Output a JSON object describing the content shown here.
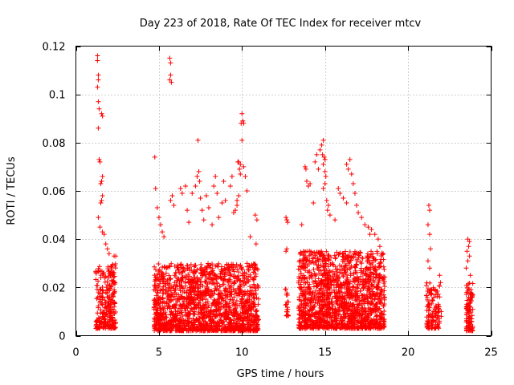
{
  "chart_data": {
    "type": "scatter",
    "title": "Day 223 of 2018, Rate Of TEC Index for receiver mtcv",
    "xlabel": "GPS time / hours",
    "ylabel": "ROTI / TECUs",
    "xlim": [
      0,
      25
    ],
    "ylim": [
      0,
      0.12
    ],
    "x_ticks": [
      0,
      5,
      10,
      15,
      20,
      25
    ],
    "x_tick_labels": [
      "0",
      "5",
      "10",
      "15",
      "20",
      "25"
    ],
    "y_ticks": [
      0,
      0.02,
      0.04,
      0.06,
      0.08,
      0.1,
      0.12
    ],
    "y_tick_labels": [
      "0",
      "0.02",
      "0.04",
      "0.06",
      "0.08",
      "0.1",
      "0.12"
    ],
    "grid": true,
    "marker": "+",
    "point_color": "#ff0000",
    "series": [
      {
        "clusters": [
          {
            "x_range": [
              1.2,
              2.4
            ],
            "count": 260,
            "y_range": [
              0.003,
              0.03
            ]
          },
          {
            "x_range": [
              4.7,
              8.2
            ],
            "count": 900,
            "y_range": [
              0.002,
              0.03
            ]
          },
          {
            "x_range": [
              8.2,
              11.0
            ],
            "count": 700,
            "y_range": [
              0.002,
              0.03
            ]
          },
          {
            "x_range": [
              12.6,
              12.8
            ],
            "count": 20,
            "y_range": [
              0.008,
              0.02
            ]
          },
          {
            "x_range": [
              13.4,
              18.6
            ],
            "count": 1500,
            "y_range": [
              0.003,
              0.035
            ]
          },
          {
            "x_range": [
              21.1,
              21.9
            ],
            "count": 120,
            "y_range": [
              0.003,
              0.022
            ]
          },
          {
            "x_range": [
              23.5,
              23.9
            ],
            "count": 100,
            "y_range": [
              0.002,
              0.022
            ]
          }
        ],
        "points": [
          [
            1.3,
            0.116
          ],
          [
            1.3,
            0.114
          ],
          [
            1.35,
            0.108
          ],
          [
            1.35,
            0.106
          ],
          [
            1.3,
            0.103
          ],
          [
            1.35,
            0.097
          ],
          [
            1.4,
            0.094
          ],
          [
            1.55,
            0.092
          ],
          [
            1.6,
            0.091
          ],
          [
            1.35,
            0.086
          ],
          [
            1.4,
            0.073
          ],
          [
            1.45,
            0.072
          ],
          [
            1.6,
            0.066
          ],
          [
            1.55,
            0.064
          ],
          [
            1.5,
            0.063
          ],
          [
            1.6,
            0.058
          ],
          [
            1.55,
            0.056
          ],
          [
            1.5,
            0.055
          ],
          [
            1.35,
            0.049
          ],
          [
            1.45,
            0.045
          ],
          [
            1.6,
            0.043
          ],
          [
            1.7,
            0.042
          ],
          [
            1.8,
            0.038
          ],
          [
            1.9,
            0.036
          ],
          [
            2.0,
            0.034
          ],
          [
            2.3,
            0.033
          ],
          [
            2.4,
            0.033
          ],
          [
            2.2,
            0.026
          ],
          [
            2.3,
            0.019
          ],
          [
            4.75,
            0.074
          ],
          [
            4.8,
            0.061
          ],
          [
            4.9,
            0.053
          ],
          [
            5.0,
            0.049
          ],
          [
            5.1,
            0.046
          ],
          [
            5.2,
            0.043
          ],
          [
            5.3,
            0.041
          ],
          [
            5.65,
            0.115
          ],
          [
            5.7,
            0.113
          ],
          [
            5.7,
            0.108
          ],
          [
            5.65,
            0.106
          ],
          [
            5.75,
            0.105
          ],
          [
            5.8,
            0.058
          ],
          [
            5.7,
            0.056
          ],
          [
            5.9,
            0.054
          ],
          [
            6.3,
            0.061
          ],
          [
            6.4,
            0.059
          ],
          [
            6.6,
            0.062
          ],
          [
            6.7,
            0.052
          ],
          [
            6.8,
            0.047
          ],
          [
            7.0,
            0.059
          ],
          [
            7.2,
            0.062
          ],
          [
            7.3,
            0.066
          ],
          [
            7.35,
            0.081
          ],
          [
            7.4,
            0.068
          ],
          [
            7.45,
            0.064
          ],
          [
            7.5,
            0.057
          ],
          [
            7.6,
            0.052
          ],
          [
            7.7,
            0.048
          ],
          [
            7.85,
            0.058
          ],
          [
            8.0,
            0.053
          ],
          [
            8.2,
            0.046
          ],
          [
            8.3,
            0.062
          ],
          [
            8.4,
            0.066
          ],
          [
            8.5,
            0.059
          ],
          [
            8.6,
            0.049
          ],
          [
            8.8,
            0.055
          ],
          [
            8.9,
            0.064
          ],
          [
            9.0,
            0.056
          ],
          [
            9.3,
            0.062
          ],
          [
            9.4,
            0.066
          ],
          [
            9.5,
            0.051
          ],
          [
            9.6,
            0.052
          ],
          [
            9.7,
            0.056
          ],
          [
            9.75,
            0.072
          ],
          [
            9.8,
            0.072
          ],
          [
            9.9,
            0.071
          ],
          [
            9.85,
            0.069
          ],
          [
            9.9,
            0.067
          ],
          [
            9.8,
            0.058
          ],
          [
            9.7,
            0.054
          ],
          [
            10.0,
            0.092
          ],
          [
            10.05,
            0.089
          ],
          [
            9.95,
            0.088
          ],
          [
            10.1,
            0.088
          ],
          [
            10.0,
            0.081
          ],
          [
            10.1,
            0.07
          ],
          [
            10.2,
            0.066
          ],
          [
            10.3,
            0.06
          ],
          [
            10.5,
            0.041
          ],
          [
            10.8,
            0.05
          ],
          [
            10.9,
            0.048
          ],
          [
            10.85,
            0.038
          ],
          [
            12.65,
            0.049
          ],
          [
            12.7,
            0.048
          ],
          [
            12.75,
            0.047
          ],
          [
            12.7,
            0.036
          ],
          [
            12.65,
            0.035
          ],
          [
            13.6,
            0.046
          ],
          [
            13.8,
            0.07
          ],
          [
            13.85,
            0.069
          ],
          [
            13.9,
            0.064
          ],
          [
            14.0,
            0.062
          ],
          [
            14.1,
            0.063
          ],
          [
            14.3,
            0.055
          ],
          [
            14.4,
            0.072
          ],
          [
            14.5,
            0.075
          ],
          [
            14.6,
            0.069
          ],
          [
            14.7,
            0.077
          ],
          [
            14.8,
            0.079
          ],
          [
            14.9,
            0.081
          ],
          [
            14.85,
            0.075
          ],
          [
            14.95,
            0.074
          ],
          [
            15.0,
            0.073
          ],
          [
            14.9,
            0.071
          ],
          [
            15.0,
            0.068
          ],
          [
            15.05,
            0.066
          ],
          [
            15.0,
            0.063
          ],
          [
            14.9,
            0.061
          ],
          [
            15.1,
            0.056
          ],
          [
            15.2,
            0.054
          ],
          [
            15.15,
            0.052
          ],
          [
            15.3,
            0.05
          ],
          [
            15.6,
            0.048
          ],
          [
            15.8,
            0.061
          ],
          [
            15.9,
            0.059
          ],
          [
            16.1,
            0.057
          ],
          [
            16.3,
            0.055
          ],
          [
            16.3,
            0.071
          ],
          [
            16.4,
            0.069
          ],
          [
            16.5,
            0.073
          ],
          [
            16.6,
            0.067
          ],
          [
            16.7,
            0.063
          ],
          [
            16.8,
            0.059
          ],
          [
            16.9,
            0.054
          ],
          [
            17.0,
            0.051
          ],
          [
            17.2,
            0.049
          ],
          [
            17.4,
            0.046
          ],
          [
            17.6,
            0.045
          ],
          [
            17.7,
            0.042
          ],
          [
            17.8,
            0.044
          ],
          [
            18.0,
            0.042
          ],
          [
            18.2,
            0.04
          ],
          [
            18.3,
            0.037
          ],
          [
            18.5,
            0.034
          ],
          [
            21.25,
            0.054
          ],
          [
            21.3,
            0.052
          ],
          [
            21.2,
            0.046
          ],
          [
            21.3,
            0.042
          ],
          [
            21.35,
            0.036
          ],
          [
            21.2,
            0.031
          ],
          [
            21.3,
            0.028
          ],
          [
            21.9,
            0.025
          ],
          [
            21.95,
            0.022
          ],
          [
            22.0,
            0.01
          ],
          [
            22.0,
            0.008
          ],
          [
            23.6,
            0.04
          ],
          [
            23.7,
            0.039
          ],
          [
            23.65,
            0.037
          ],
          [
            23.55,
            0.035
          ],
          [
            23.7,
            0.033
          ],
          [
            23.6,
            0.031
          ],
          [
            23.5,
            0.028
          ],
          [
            23.75,
            0.025
          ]
        ]
      }
    ]
  }
}
